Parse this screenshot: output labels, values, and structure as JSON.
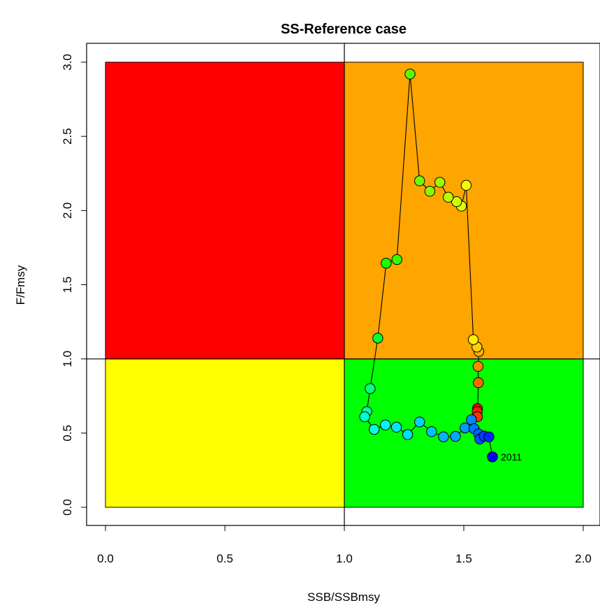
{
  "chart_data": {
    "type": "scatter",
    "title": "SS-Reference case",
    "xlabel": "SSB/SSBmsy",
    "ylabel": "F/Fmsy",
    "xlim": [
      0,
      2
    ],
    "ylim": [
      0,
      3
    ],
    "x_ticks": [
      0.0,
      0.5,
      1.0,
      1.5,
      2.0
    ],
    "x_tick_labels": [
      "0.0",
      "0.5",
      "1.0",
      "1.5",
      "2.0"
    ],
    "y_ticks": [
      0.0,
      0.5,
      1.0,
      1.5,
      2.0,
      2.5,
      3.0
    ],
    "y_tick_labels": [
      "0.0",
      "0.5",
      "1.0",
      "1.5",
      "2.0",
      "2.5",
      "3.0"
    ],
    "reference_lines": {
      "x": 1.0,
      "y": 1.0
    },
    "quadrants": [
      {
        "name": "overfished-overfishing",
        "x": [
          0,
          1
        ],
        "y": [
          1,
          3
        ],
        "color": "#ff0000"
      },
      {
        "name": "healthy-overfishing",
        "x": [
          1,
          2
        ],
        "y": [
          1,
          3
        ],
        "color": "#ffa500"
      },
      {
        "name": "overfished-no-overfishing",
        "x": [
          0,
          1
        ],
        "y": [
          0,
          1
        ],
        "color": "#ffff00"
      },
      {
        "name": "healthy",
        "x": [
          1,
          2
        ],
        "y": [
          0,
          1
        ],
        "color": "#00ff00"
      }
    ],
    "connect_points": true,
    "series": [
      {
        "points": [
          {
            "x": 1.557,
            "y": 0.665,
            "color": "#ff0000"
          },
          {
            "x": 1.556,
            "y": 0.645,
            "color": "#ff1a00"
          },
          {
            "x": 1.557,
            "y": 0.61,
            "color": "#ff3300"
          },
          {
            "x": 1.561,
            "y": 0.84,
            "color": "#ff6a00"
          },
          {
            "x": 1.56,
            "y": 0.95,
            "color": "#ff8800"
          },
          {
            "x": 1.563,
            "y": 1.05,
            "color": "#ffb000"
          },
          {
            "x": 1.555,
            "y": 1.08,
            "color": "#ffd000"
          },
          {
            "x": 1.54,
            "y": 1.13,
            "color": "#ffee00"
          },
          {
            "x": 1.51,
            "y": 2.17,
            "color": "#f2ff00"
          },
          {
            "x": 1.49,
            "y": 2.03,
            "color": "#e0ff00"
          },
          {
            "x": 1.47,
            "y": 2.06,
            "color": "#ccff00"
          },
          {
            "x": 1.435,
            "y": 2.09,
            "color": "#b8ff00"
          },
          {
            "x": 1.4,
            "y": 2.19,
            "color": "#a0ff00"
          },
          {
            "x": 1.358,
            "y": 2.13,
            "color": "#88ff00"
          },
          {
            "x": 1.315,
            "y": 2.2,
            "color": "#70ff00"
          },
          {
            "x": 1.275,
            "y": 2.92,
            "color": "#55ff00"
          },
          {
            "x": 1.22,
            "y": 1.67,
            "color": "#33ff00"
          },
          {
            "x": 1.175,
            "y": 1.645,
            "color": "#1aff00"
          },
          {
            "x": 1.14,
            "y": 1.14,
            "color": "#00ff33"
          },
          {
            "x": 1.108,
            "y": 0.8,
            "color": "#00ff80"
          },
          {
            "x": 1.094,
            "y": 0.645,
            "color": "#00ffaa"
          },
          {
            "x": 1.085,
            "y": 0.61,
            "color": "#00ffc8"
          },
          {
            "x": 1.125,
            "y": 0.525,
            "color": "#00ffe0"
          },
          {
            "x": 1.172,
            "y": 0.555,
            "color": "#00f5ff"
          },
          {
            "x": 1.218,
            "y": 0.54,
            "color": "#00e8ff"
          },
          {
            "x": 1.265,
            "y": 0.49,
            "color": "#00dcff"
          },
          {
            "x": 1.315,
            "y": 0.575,
            "color": "#00d0ff"
          },
          {
            "x": 1.365,
            "y": 0.51,
            "color": "#00c4ff"
          },
          {
            "x": 1.415,
            "y": 0.475,
            "color": "#00b6ff"
          },
          {
            "x": 1.465,
            "y": 0.478,
            "color": "#00a8ff"
          },
          {
            "x": 1.505,
            "y": 0.535,
            "color": "#0098ff"
          },
          {
            "x": 1.532,
            "y": 0.59,
            "color": "#0088ff"
          },
          {
            "x": 1.543,
            "y": 0.53,
            "color": "#0076ff"
          },
          {
            "x": 1.562,
            "y": 0.495,
            "color": "#0062ff"
          },
          {
            "x": 1.567,
            "y": 0.46,
            "color": "#004eff"
          },
          {
            "x": 1.585,
            "y": 0.48,
            "color": "#003cff"
          },
          {
            "x": 1.605,
            "y": 0.475,
            "color": "#002aff"
          },
          {
            "x": 1.62,
            "y": 0.34,
            "color": "#0000ff",
            "label": "2011"
          }
        ]
      }
    ]
  }
}
